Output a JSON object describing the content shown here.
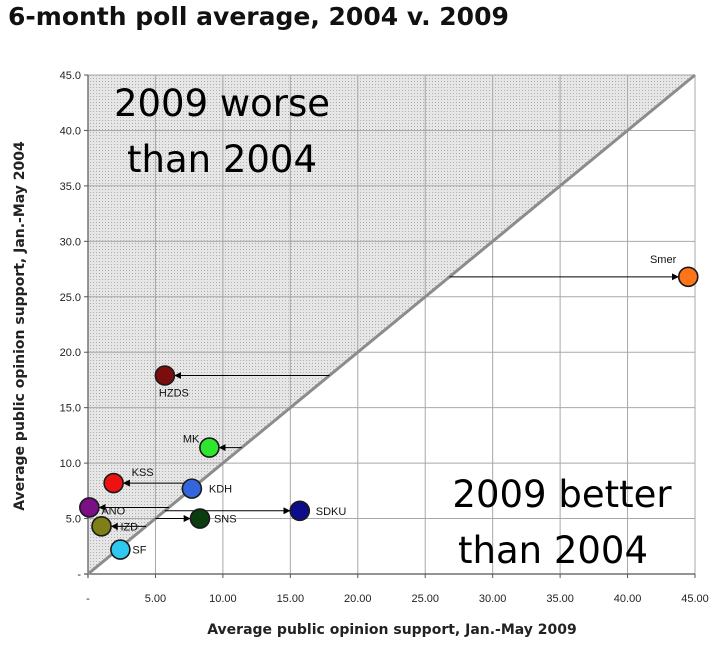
{
  "chart_data": {
    "type": "scatter",
    "title": "6-month poll average, 2004 v. 2009",
    "xlabel": "Average public opinion support, Jan.-May 2009",
    "ylabel": "Average public opinion support, Jan.-May 2004",
    "xlim": [
      0,
      45
    ],
    "ylim": [
      0,
      45
    ],
    "x_ticks": [
      "-",
      "5.00",
      "10.00",
      "15.00",
      "20.00",
      "25.00",
      "30.00",
      "35.00",
      "40.00",
      "45.00"
    ],
    "y_ticks": [
      "-",
      "5.0",
      "10.0",
      "15.0",
      "20.0",
      "25.0",
      "30.0",
      "35.0",
      "40.0",
      "45.0"
    ],
    "grid": true,
    "reference_line": "y = x",
    "regions": [
      {
        "text": [
          "2009 worse",
          "than 2004"
        ],
        "shaded": true,
        "color": "#d4d4d4"
      },
      {
        "text": [
          "2009 better",
          "than 2004"
        ],
        "shaded": false
      }
    ],
    "points": [
      {
        "label": "Smer",
        "x": 44.5,
        "y": 26.8,
        "color": "#ff7319"
      },
      {
        "label": "HZDS",
        "x": 5.7,
        "y": 17.9,
        "color": "#7b0d0d"
      },
      {
        "label": "MK",
        "x": 9.0,
        "y": 11.4,
        "color": "#2ee62e"
      },
      {
        "label": "KSS",
        "x": 1.9,
        "y": 8.2,
        "color": "#ee1111"
      },
      {
        "label": "KDH",
        "x": 7.7,
        "y": 7.7,
        "color": "#3366dd"
      },
      {
        "label": "ANO",
        "x": 0.1,
        "y": 6.0,
        "color": "#7a0f86"
      },
      {
        "label": "SDKU",
        "x": 15.7,
        "y": 5.7,
        "color": "#0c0c8c"
      },
      {
        "label": "SNS",
        "x": 8.3,
        "y": 5.0,
        "color": "#0b3d11"
      },
      {
        "label": "HZD",
        "x": 1.0,
        "y": 4.3,
        "color": "#7f7f18"
      },
      {
        "label": "SF",
        "x": 2.4,
        "y": 2.2,
        "color": "#2ec8f0"
      }
    ]
  }
}
